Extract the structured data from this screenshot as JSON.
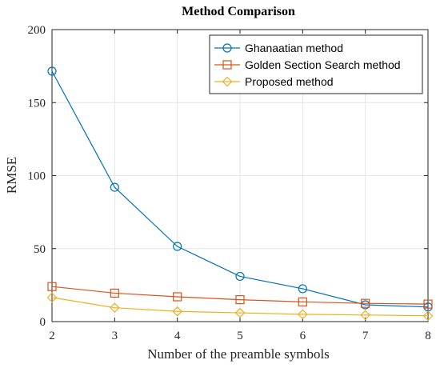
{
  "chart_data": {
    "type": "line",
    "title": "Method Comparison",
    "xlabel": "Number of the preamble symbols",
    "ylabel": "RMSE",
    "x": [
      2,
      3,
      4,
      5,
      6,
      7,
      8
    ],
    "xlim": [
      2,
      8
    ],
    "ylim": [
      0,
      200
    ],
    "xticks": [
      2,
      3,
      4,
      5,
      6,
      7,
      8
    ],
    "yticks": [
      0,
      50,
      100,
      150,
      200
    ],
    "grid": true,
    "legend_position": "top-right",
    "series": [
      {
        "name": "Ghanaatian method",
        "color": "#0072BD",
        "marker": "circle",
        "values": [
          171.5,
          92,
          51.5,
          31,
          22.5,
          11.5,
          10
        ]
      },
      {
        "name": "Golden Section Search method",
        "color": "#D95319",
        "marker": "square",
        "values": [
          24,
          19.5,
          17,
          15,
          13.5,
          12.5,
          12
        ]
      },
      {
        "name": "Proposed method",
        "color": "#EDB120",
        "marker": "diamond",
        "values": [
          16.5,
          9.5,
          7,
          6,
          5,
          4.5,
          4
        ]
      }
    ]
  }
}
